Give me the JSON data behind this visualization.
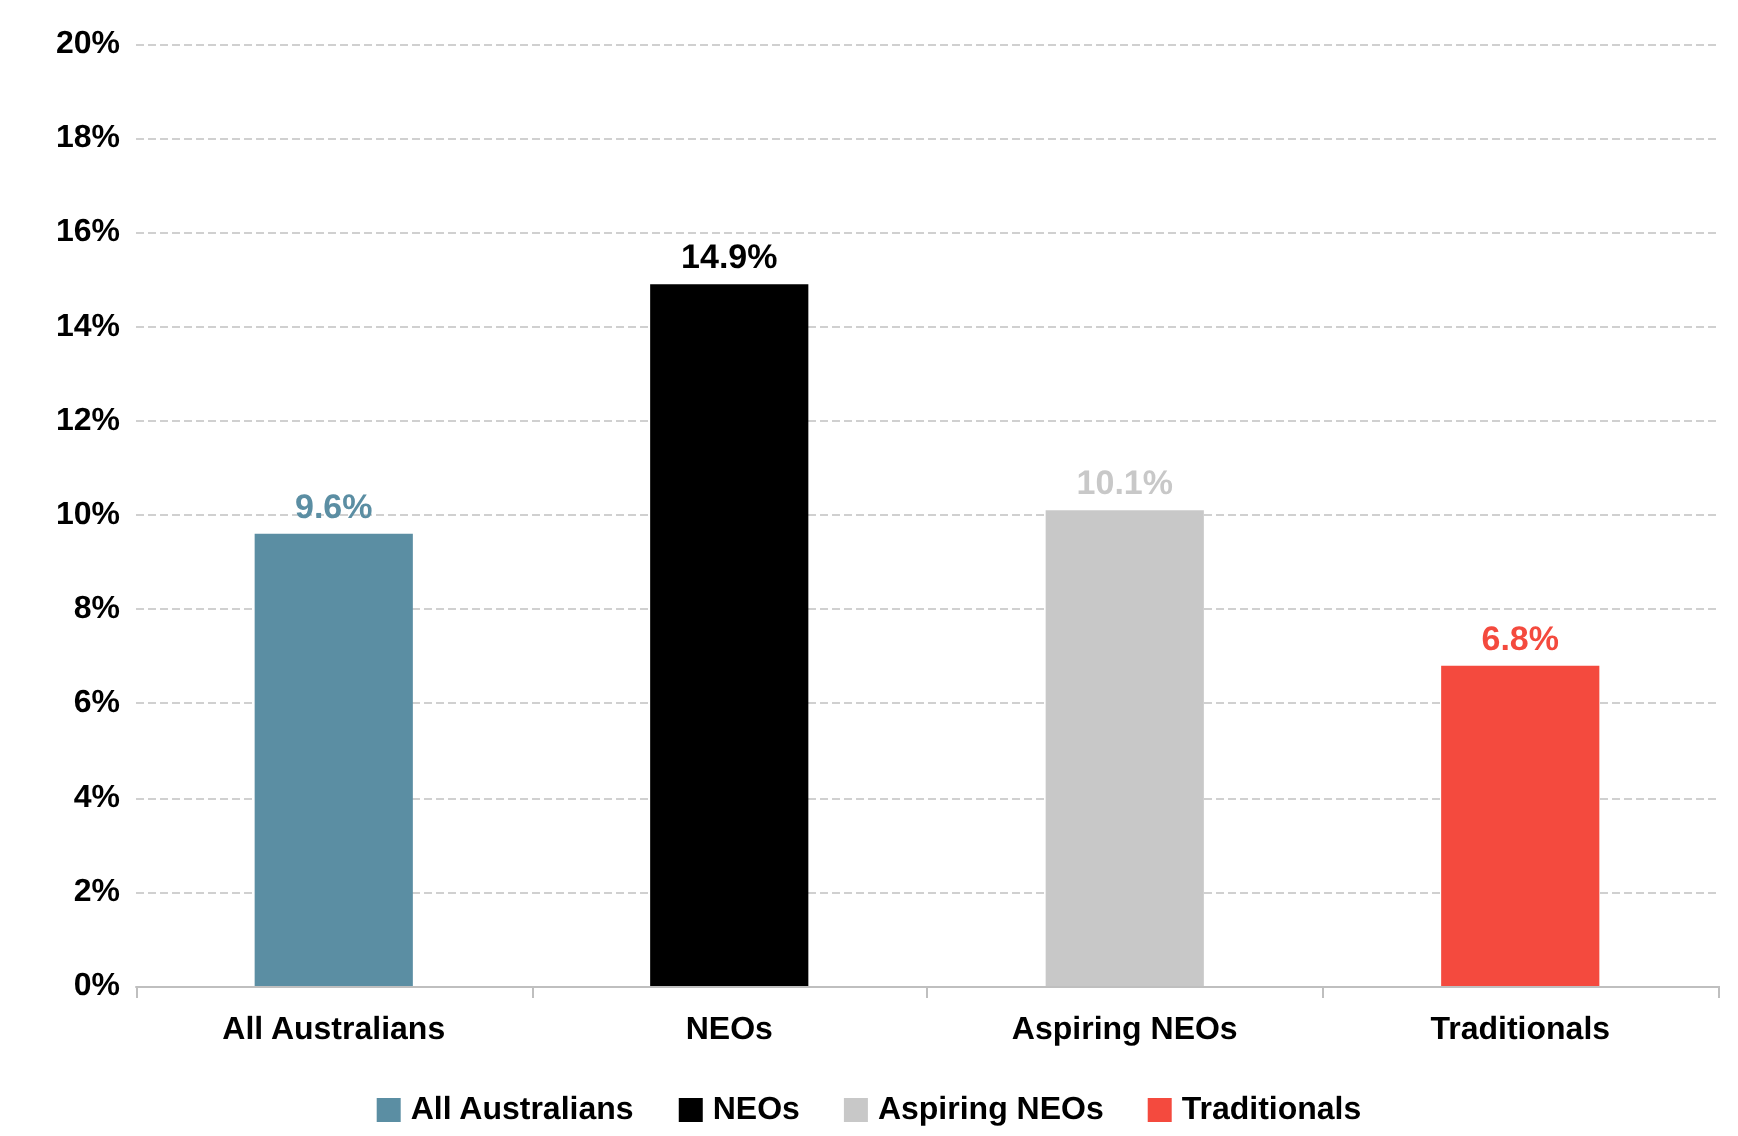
{
  "chart_data": {
    "type": "bar",
    "categories": [
      "All Australians",
      "NEOs",
      "Aspiring NEOs",
      "Traditionals"
    ],
    "stacked": true,
    "series": [
      {
        "name": "All Australians",
        "color": "#5b8ea3",
        "values": [
          9.6,
          null,
          null,
          null
        ],
        "value_labels": [
          "9.6%",
          null,
          null,
          null
        ]
      },
      {
        "name": "NEOs",
        "color": "#000000",
        "values": [
          null,
          14.9,
          null,
          null
        ],
        "value_labels": [
          null,
          "14.9%",
          null,
          null
        ]
      },
      {
        "name": "Aspiring NEOs",
        "color": "#c8c8c8",
        "values": [
          null,
          null,
          10.1,
          null
        ],
        "value_labels": [
          null,
          null,
          "10.1%",
          null
        ]
      },
      {
        "name": "Traditionals",
        "color": "#f44a3e",
        "values": [
          null,
          null,
          null,
          6.8
        ],
        "value_labels": [
          null,
          null,
          null,
          "6.8%"
        ]
      }
    ],
    "ylim": [
      0,
      20
    ],
    "yticks": [
      {
        "value": 0,
        "label": "0%"
      },
      {
        "value": 2,
        "label": "2%"
      },
      {
        "value": 4,
        "label": "4%"
      },
      {
        "value": 6,
        "label": "6%"
      },
      {
        "value": 8,
        "label": "8%"
      },
      {
        "value": 10,
        "label": "10%"
      },
      {
        "value": 12,
        "label": "12%"
      },
      {
        "value": 14,
        "label": "14%"
      },
      {
        "value": 16,
        "label": "16%"
      },
      {
        "value": 18,
        "label": "18%"
      },
      {
        "value": 20,
        "label": "20%"
      }
    ],
    "grid": "y",
    "legend": "bottom"
  }
}
